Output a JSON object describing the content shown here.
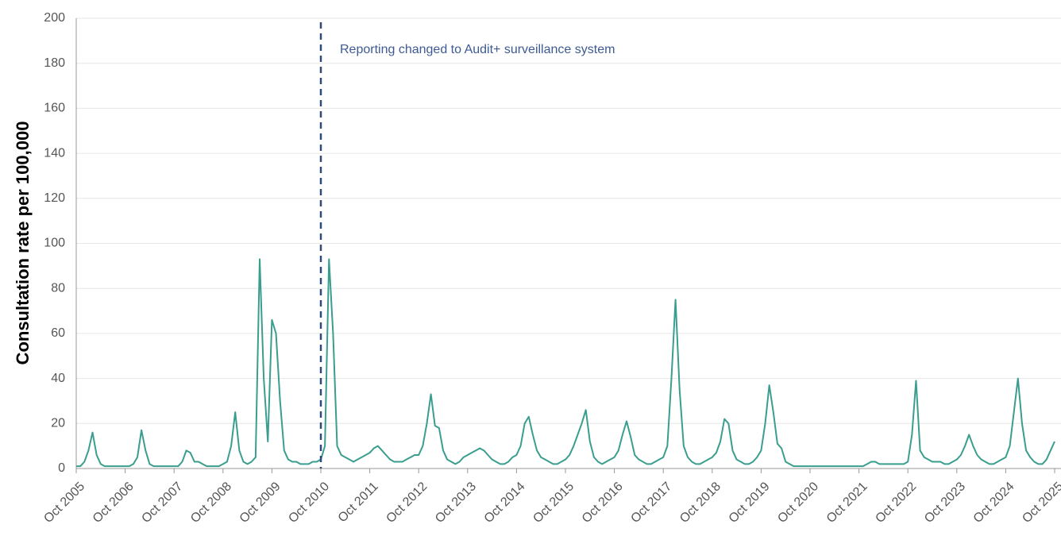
{
  "chart_data": {
    "type": "line",
    "ylabel": "Consultation rate per 100,000",
    "color": "#3a9e8f",
    "x": [
      "2005-10",
      "2005-11",
      "2005-12",
      "2006-01",
      "2006-02",
      "2006-03",
      "2006-04",
      "2006-05",
      "2006-06",
      "2006-07",
      "2006-08",
      "2006-09",
      "2006-10",
      "2006-11",
      "2006-12",
      "2007-01",
      "2007-02",
      "2007-03",
      "2007-04",
      "2007-05",
      "2007-06",
      "2007-07",
      "2007-08",
      "2007-09",
      "2007-10",
      "2007-11",
      "2007-12",
      "2008-01",
      "2008-02",
      "2008-03",
      "2008-04",
      "2008-05",
      "2008-06",
      "2008-07",
      "2008-08",
      "2008-09",
      "2008-10",
      "2008-11",
      "2008-12",
      "2009-01",
      "2009-02",
      "2009-03",
      "2009-04",
      "2009-05",
      "2009-06",
      "2009-07",
      "2009-08",
      "2009-09",
      "2009-10",
      "2009-11",
      "2009-12",
      "2010-01",
      "2010-02",
      "2010-03",
      "2010-04",
      "2010-05",
      "2010-06",
      "2010-07",
      "2010-08",
      "2010-09",
      "2010-10",
      "2010-11",
      "2010-12",
      "2011-01",
      "2011-02",
      "2011-03",
      "2011-04",
      "2011-05",
      "2011-06",
      "2011-07",
      "2011-08",
      "2011-09",
      "2011-10",
      "2011-11",
      "2011-12",
      "2012-01",
      "2012-02",
      "2012-03",
      "2012-04",
      "2012-05",
      "2012-06",
      "2012-07",
      "2012-08",
      "2012-09",
      "2012-10",
      "2012-11",
      "2012-12",
      "2013-01",
      "2013-02",
      "2013-03",
      "2013-04",
      "2013-05",
      "2013-06",
      "2013-07",
      "2013-08",
      "2013-09",
      "2013-10",
      "2013-11",
      "2013-12",
      "2014-01",
      "2014-02",
      "2014-03",
      "2014-04",
      "2014-05",
      "2014-06",
      "2014-07",
      "2014-08",
      "2014-09",
      "2014-10",
      "2014-11",
      "2014-12",
      "2015-01",
      "2015-02",
      "2015-03",
      "2015-04",
      "2015-05",
      "2015-06",
      "2015-07",
      "2015-08",
      "2015-09",
      "2015-10",
      "2015-11",
      "2015-12",
      "2016-01",
      "2016-02",
      "2016-03",
      "2016-04",
      "2016-05",
      "2016-06",
      "2016-07",
      "2016-08",
      "2016-09",
      "2016-10",
      "2016-11",
      "2016-12",
      "2017-01",
      "2017-02",
      "2017-03",
      "2017-04",
      "2017-05",
      "2017-06",
      "2017-07",
      "2017-08",
      "2017-09",
      "2017-10",
      "2017-11",
      "2017-12",
      "2018-01",
      "2018-02",
      "2018-03",
      "2018-04",
      "2018-05",
      "2018-06",
      "2018-07",
      "2018-08",
      "2018-09",
      "2018-10",
      "2018-11",
      "2018-12",
      "2019-01",
      "2019-02",
      "2019-03",
      "2019-04",
      "2019-05",
      "2019-06",
      "2019-07",
      "2019-08",
      "2019-09",
      "2019-10",
      "2019-11",
      "2019-12",
      "2020-01",
      "2020-02",
      "2020-03",
      "2020-04",
      "2020-05",
      "2020-06",
      "2020-07",
      "2020-08",
      "2020-09",
      "2020-10",
      "2020-11",
      "2020-12",
      "2021-01",
      "2021-02",
      "2021-03",
      "2021-04",
      "2021-05",
      "2021-06",
      "2021-07",
      "2021-08",
      "2021-09",
      "2021-10",
      "2021-11",
      "2021-12",
      "2022-01",
      "2022-02",
      "2022-03",
      "2022-04",
      "2022-05",
      "2022-06",
      "2022-07",
      "2022-08",
      "2022-09",
      "2022-10",
      "2022-11",
      "2022-12",
      "2023-01",
      "2023-02",
      "2023-03",
      "2023-04",
      "2023-05",
      "2023-06",
      "2023-07",
      "2023-08",
      "2023-09",
      "2023-10",
      "2023-11",
      "2023-12",
      "2024-01",
      "2024-02",
      "2024-03",
      "2024-04",
      "2024-05",
      "2024-06",
      "2024-07",
      "2024-08",
      "2024-09",
      "2024-10",
      "2024-11",
      "2024-12",
      "2025-01",
      "2025-02",
      "2025-03",
      "2025-04",
      "2025-05",
      "2025-06",
      "2025-07",
      "2025-08",
      "2025-09",
      "2025-10"
    ],
    "values": [
      1,
      1,
      3,
      8,
      16,
      6,
      2,
      1,
      1,
      1,
      1,
      1,
      1,
      1,
      2,
      5,
      17,
      8,
      2,
      1,
      1,
      1,
      1,
      1,
      1,
      1,
      3,
      8,
      7,
      3,
      3,
      2,
      1,
      1,
      1,
      1,
      2,
      3,
      10,
      25,
      8,
      3,
      2,
      3,
      5,
      93,
      40,
      12,
      66,
      60,
      30,
      8,
      4,
      3,
      3,
      2,
      2,
      2,
      3,
      3,
      4,
      10,
      93,
      60,
      10,
      6,
      5,
      4,
      3,
      4,
      5,
      6,
      7,
      9,
      10,
      8,
      6,
      4,
      3,
      3,
      3,
      4,
      5,
      6,
      6,
      10,
      20,
      33,
      19,
      18,
      8,
      4,
      3,
      2,
      3,
      5,
      6,
      7,
      8,
      9,
      8,
      6,
      4,
      3,
      2,
      2,
      3,
      5,
      6,
      10,
      20,
      23,
      15,
      8,
      5,
      4,
      3,
      2,
      2,
      3,
      4,
      6,
      10,
      15,
      20,
      26,
      12,
      5,
      3,
      2,
      3,
      4,
      5,
      8,
      15,
      21,
      14,
      6,
      4,
      3,
      2,
      2,
      3,
      4,
      5,
      10,
      40,
      75,
      35,
      10,
      5,
      3,
      2,
      2,
      3,
      4,
      5,
      7,
      12,
      22,
      20,
      8,
      4,
      3,
      2,
      2,
      3,
      5,
      8,
      20,
      37,
      25,
      11,
      9,
      3,
      2,
      1,
      1,
      1,
      1,
      1,
      1,
      1,
      1,
      1,
      1,
      1,
      1,
      1,
      1,
      1,
      1,
      1,
      1,
      2,
      3,
      3,
      2,
      2,
      2,
      2,
      2,
      2,
      2,
      3,
      15,
      39,
      8,
      5,
      4,
      3,
      3,
      3,
      2,
      2,
      3,
      4,
      6,
      10,
      15,
      10,
      6,
      4,
      3,
      2,
      2,
      3,
      4,
      5,
      10,
      25,
      40,
      20,
      8,
      5,
      3,
      2,
      2,
      4,
      8,
      12
    ],
    "xlim": [
      "2005-10",
      "2025-10"
    ],
    "xticks": [
      {
        "value": "2005-10",
        "label": "Oct 2005"
      },
      {
        "value": "2006-10",
        "label": "Oct 2006"
      },
      {
        "value": "2007-10",
        "label": "Oct 2007"
      },
      {
        "value": "2008-10",
        "label": "Oct 2008"
      },
      {
        "value": "2009-10",
        "label": "Oct 2009"
      },
      {
        "value": "2010-10",
        "label": "Oct 2010"
      },
      {
        "value": "2011-10",
        "label": "Oct 2011"
      },
      {
        "value": "2012-10",
        "label": "Oct 2012"
      },
      {
        "value": "2013-10",
        "label": "Oct 2013"
      },
      {
        "value": "2014-10",
        "label": "Oct 2014"
      },
      {
        "value": "2015-10",
        "label": "Oct 2015"
      },
      {
        "value": "2016-10",
        "label": "Oct 2016"
      },
      {
        "value": "2017-10",
        "label": "Oct 2017"
      },
      {
        "value": "2018-10",
        "label": "Oct 2018"
      },
      {
        "value": "2019-10",
        "label": "Oct 2019"
      },
      {
        "value": "2020-10",
        "label": "Oct 2020"
      },
      {
        "value": "2021-10",
        "label": "Oct 2021"
      },
      {
        "value": "2022-10",
        "label": "Oct 2022"
      },
      {
        "value": "2023-10",
        "label": "Oct 2023"
      },
      {
        "value": "2024-10",
        "label": "Oct 2024"
      },
      {
        "value": "2025-10",
        "label": "Oct 2025"
      }
    ],
    "ylim": [
      0,
      200
    ],
    "yticks": [
      0,
      20,
      40,
      60,
      80,
      100,
      120,
      140,
      160,
      180,
      200
    ],
    "grid": true,
    "annotations": [
      {
        "x": "2010-10",
        "text": "Reporting changed to Audit+ surveillance system"
      }
    ]
  }
}
